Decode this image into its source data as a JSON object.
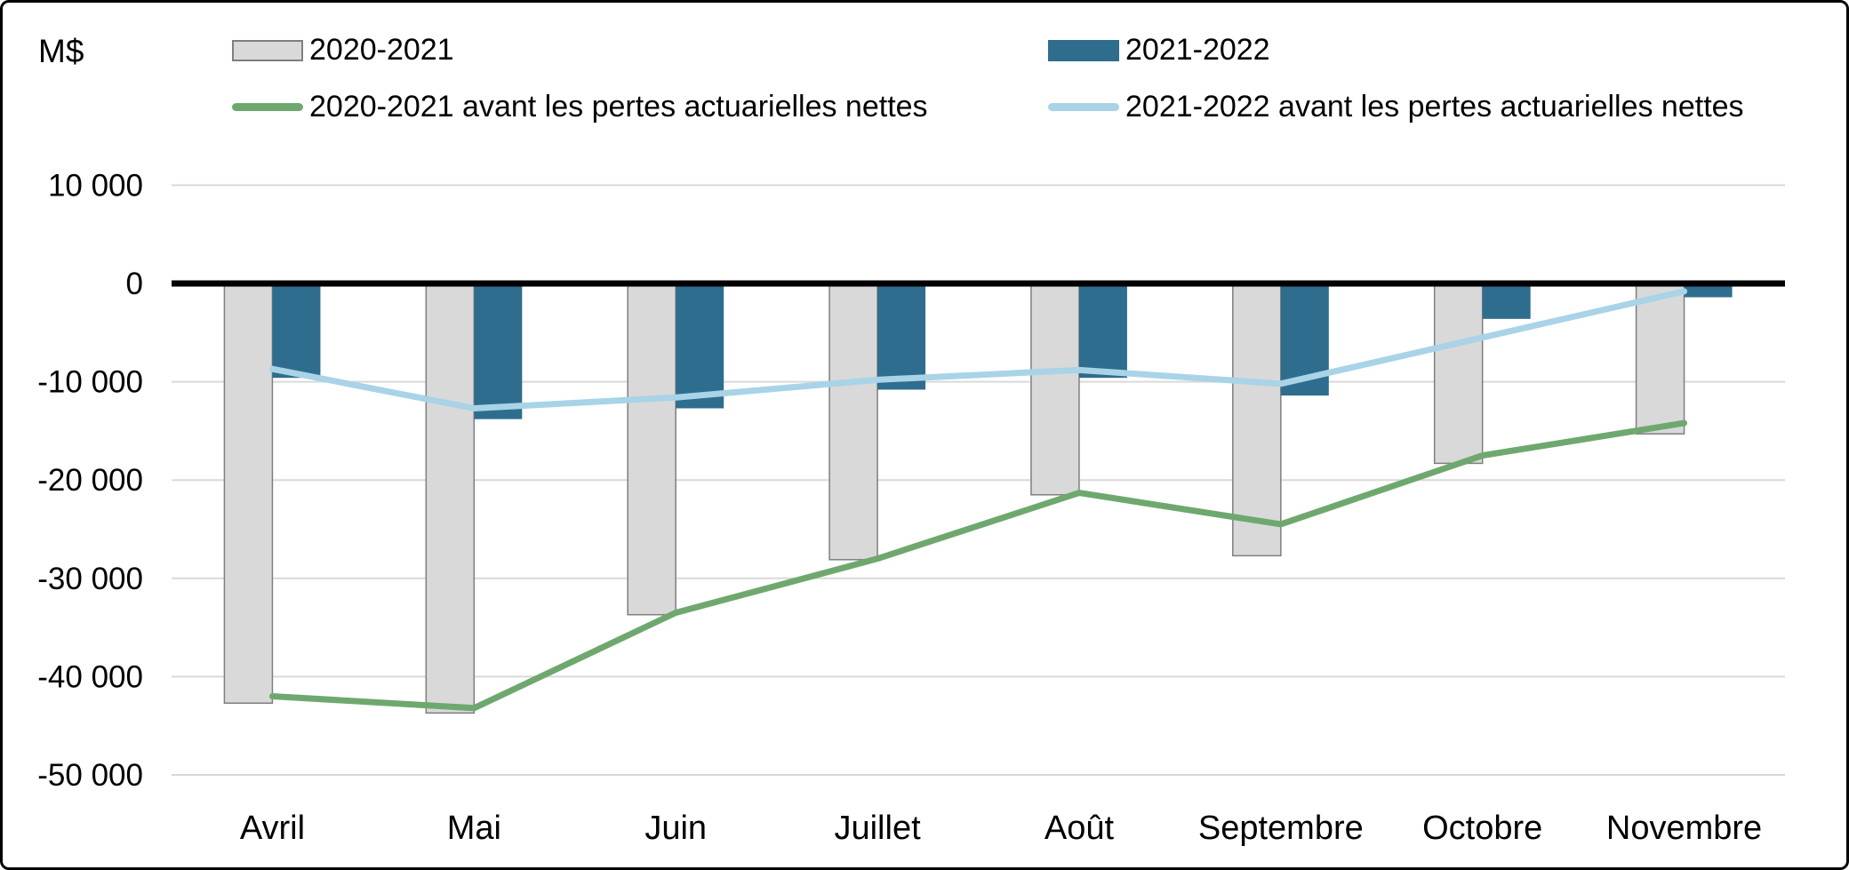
{
  "unit_label": "M$",
  "legend": {
    "bar_2020": "2020-2021",
    "bar_2021": "2021-2022",
    "line_2020": "2020-2021 avant les pertes actuarielles nettes",
    "line_2021": "2021-2022 avant les pertes actuarielles nettes"
  },
  "colors": {
    "bar_2020_fill": "#d9d9d9",
    "bar_2020_stroke": "#7f7f7f",
    "bar_2021_fill": "#2e6d8e",
    "line_2020": "#6fa86f",
    "line_2021": "#a9d3e7",
    "gridline": "#d9d9d9",
    "axis": "#000000"
  },
  "chart_data": {
    "type": "bar",
    "title": "",
    "xlabel": "",
    "ylabel": "M$",
    "ylim": [
      -50000,
      10000
    ],
    "grid": true,
    "legend_position": "top",
    "categories": [
      "Avril",
      "Mai",
      "Juin",
      "Juillet",
      "Août",
      "Septembre",
      "Octobre",
      "Novembre"
    ],
    "y_ticks": [
      {
        "label": "10 000",
        "value": 10000
      },
      {
        "label": "0",
        "value": 0
      },
      {
        "label": "-10 000",
        "value": -10000
      },
      {
        "label": "-20 000",
        "value": -20000
      },
      {
        "label": "-30 000",
        "value": -30000
      },
      {
        "label": "-40 000",
        "value": -40000
      },
      {
        "label": "-50 000",
        "value": -50000
      }
    ],
    "series": [
      {
        "name": "2020-2021",
        "type": "bar",
        "values": [
          -42700,
          -43700,
          -33700,
          -28100,
          -21500,
          -27700,
          -18300,
          -15300
        ]
      },
      {
        "name": "2021-2022",
        "type": "bar",
        "values": [
          -9600,
          -13800,
          -12700,
          -10800,
          -9600,
          -11400,
          -3600,
          -1400
        ]
      },
      {
        "name": "2020-2021 avant les pertes actuarielles nettes",
        "type": "line",
        "values": [
          -42000,
          -43200,
          -33500,
          -28000,
          -21300,
          -24500,
          -17500,
          -14200
        ]
      },
      {
        "name": "2021-2022 avant les pertes actuarielles nettes",
        "type": "line",
        "values": [
          -8700,
          -12700,
          -11600,
          -9800,
          -8800,
          -10200,
          -5500,
          -800
        ]
      }
    ]
  }
}
